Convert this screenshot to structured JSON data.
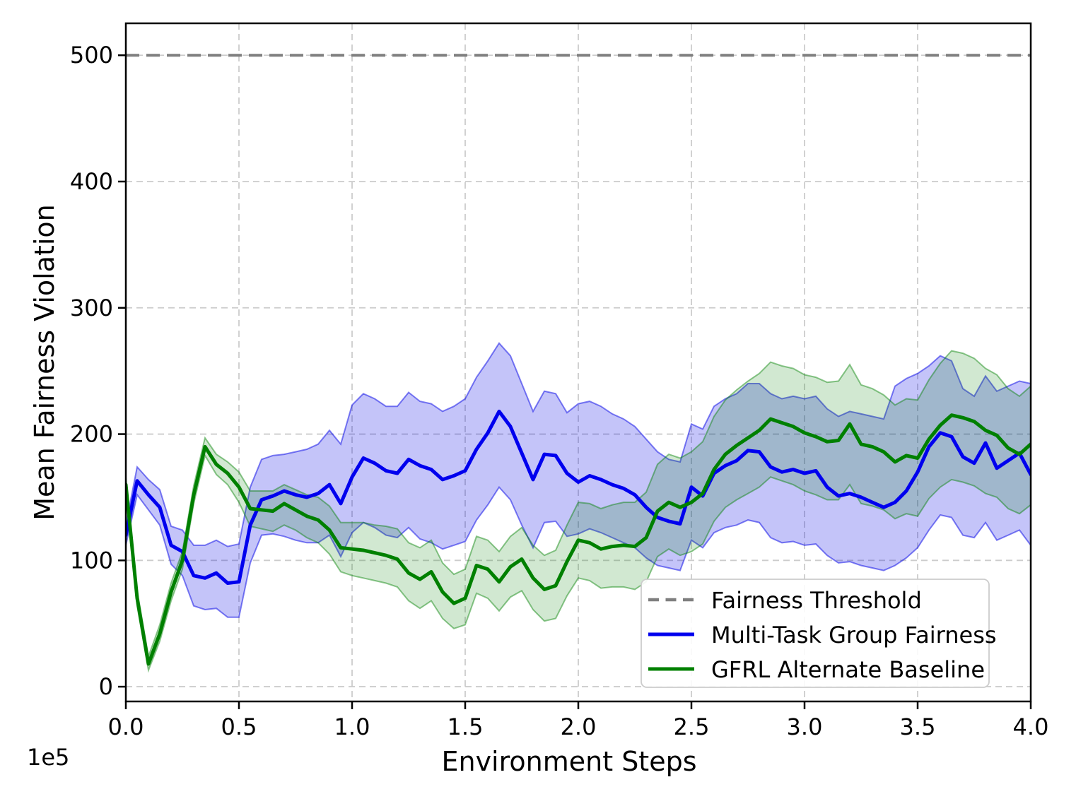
{
  "chart_data": {
    "type": "line",
    "title": "",
    "xlabel": "Environment Steps",
    "ylabel": "Mean Fairness Violation",
    "x_offset_text": "1e5",
    "x_unit_multiplier": 100000,
    "xlim": [
      0,
      4.0
    ],
    "ylim": [
      -11.7,
      525.3
    ],
    "xticks": [
      0,
      0.5,
      1.0,
      1.5,
      2.0,
      2.5,
      3.0,
      3.5,
      4.0
    ],
    "xtick_labels": [
      "0.0",
      "0.5",
      "1.0",
      "1.5",
      "2.0",
      "2.5",
      "3.0",
      "3.5",
      "4.0"
    ],
    "yticks": [
      0,
      100,
      200,
      300,
      400,
      500
    ],
    "ytick_labels": [
      "0",
      "100",
      "200",
      "300",
      "400",
      "500"
    ],
    "grid": true,
    "grid_color": "#cccccc",
    "legend_position": "lower right",
    "threshold": {
      "label": "Fairness Threshold",
      "value": 500,
      "color": "#7f7f7f",
      "style": "dashed"
    },
    "x": [
      0,
      0.05,
      0.1,
      0.15,
      0.2,
      0.25,
      0.3,
      0.35,
      0.4,
      0.45,
      0.5,
      0.55,
      0.6,
      0.65,
      0.7,
      0.75,
      0.8,
      0.85,
      0.9,
      0.95,
      1,
      1.05,
      1.1,
      1.15,
      1.2,
      1.25,
      1.3,
      1.35,
      1.4,
      1.45,
      1.5,
      1.55,
      1.6,
      1.65,
      1.7,
      1.75,
      1.8,
      1.85,
      1.9,
      1.95,
      2,
      2.05,
      2.1,
      2.15,
      2.2,
      2.25,
      2.3,
      2.35,
      2.4,
      2.45,
      2.5,
      2.55,
      2.6,
      2.65,
      2.7,
      2.75,
      2.8,
      2.85,
      2.9,
      2.95,
      3,
      3.05,
      3.1,
      3.15,
      3.2,
      3.25,
      3.3,
      3.35,
      3.4,
      3.45,
      3.5,
      3.55,
      3.6,
      3.65,
      3.7,
      3.75,
      3.8,
      3.85,
      3.9,
      3.95,
      4
    ],
    "series": [
      {
        "name": "Multi-Task Group Fairness",
        "color": "#0000ee",
        "band_fill": "rgba(0,0,230,0.23)",
        "band_edge": "rgba(0,0,230,0.5)",
        "mean": [
          120,
          163,
          152,
          142,
          112,
          107,
          88,
          86,
          90,
          82,
          83,
          128,
          148,
          151,
          155,
          152,
          150,
          153,
          160,
          145,
          166,
          181,
          177,
          171,
          169,
          180,
          175,
          172,
          164,
          167,
          171,
          188,
          201,
          218,
          206,
          185,
          164,
          184,
          183,
          169,
          162,
          167,
          164,
          160,
          157,
          152,
          142,
          134,
          131,
          129,
          158,
          151,
          169,
          175,
          179,
          187,
          186,
          174,
          170,
          172,
          169,
          171,
          158,
          151,
          153,
          150,
          146,
          142,
          146,
          155,
          170,
          190,
          201,
          198,
          182,
          177,
          193,
          173,
          179,
          185,
          168
        ],
        "upper": [
          128,
          174,
          164,
          156,
          127,
          124,
          112,
          112,
          116,
          111,
          113,
          158,
          180,
          183,
          184,
          186,
          188,
          192,
          203,
          192,
          223,
          232,
          228,
          222,
          222,
          233,
          226,
          224,
          218,
          222,
          228,
          245,
          258,
          272,
          262,
          240,
          218,
          234,
          232,
          217,
          224,
          226,
          222,
          216,
          212,
          206,
          196,
          186,
          180,
          178,
          208,
          204,
          222,
          228,
          232,
          240,
          240,
          232,
          228,
          230,
          228,
          230,
          220,
          214,
          218,
          216,
          214,
          212,
          238,
          244,
          248,
          254,
          262,
          258,
          236,
          230,
          246,
          234,
          238,
          242,
          240
        ],
        "lower": [
          112,
          152,
          140,
          128,
          97,
          88,
          64,
          61,
          62,
          55,
          55,
          98,
          120,
          121,
          119,
          116,
          114,
          114,
          120,
          103,
          122,
          130,
          126,
          120,
          118,
          126,
          117,
          114,
          109,
          112,
          115,
          132,
          144,
          158,
          148,
          128,
          110,
          130,
          131,
          119,
          121,
          125,
          122,
          118,
          114,
          110,
          102,
          96,
          94,
          92,
          116,
          110,
          122,
          126,
          128,
          132,
          130,
          118,
          114,
          115,
          112,
          113,
          104,
          98,
          99,
          96,
          94,
          92,
          96,
          102,
          110,
          124,
          136,
          134,
          120,
          118,
          130,
          116,
          120,
          124,
          112
        ]
      },
      {
        "name": "GFRL Alternate Baseline",
        "color": "#008000",
        "band_fill": "rgba(0,128,0,0.18)",
        "band_edge": "rgba(0,128,0,0.45)",
        "mean": [
          160,
          70,
          18,
          42,
          75,
          100,
          152,
          190,
          176,
          169,
          158,
          141,
          140,
          139,
          145,
          140,
          135,
          132,
          124,
          110,
          109,
          108,
          106,
          104,
          101,
          90,
          85,
          91,
          75,
          66,
          70,
          96,
          93,
          83,
          95,
          101,
          86,
          77,
          80,
          99,
          116,
          114,
          109,
          111,
          112,
          111,
          118,
          139,
          146,
          142,
          146,
          153,
          172,
          184,
          191,
          197,
          203,
          212,
          209,
          206,
          201,
          198,
          194,
          195,
          208,
          192,
          190,
          186,
          178,
          183,
          181,
          196,
          207,
          215,
          213,
          210,
          203,
          199,
          189,
          184,
          192
        ],
        "upper": [
          166,
          76,
          24,
          49,
          82,
          107,
          159,
          197,
          184,
          178,
          170,
          155,
          155,
          155,
          160,
          156,
          152,
          150,
          143,
          130,
          130,
          130,
          128,
          127,
          125,
          114,
          110,
          116,
          98,
          89,
          93,
          119,
          116,
          107,
          119,
          126,
          112,
          104,
          108,
          128,
          146,
          145,
          141,
          144,
          146,
          146,
          154,
          176,
          184,
          181,
          186,
          194,
          214,
          227,
          235,
          242,
          248,
          257,
          254,
          252,
          247,
          245,
          241,
          242,
          255,
          239,
          236,
          231,
          223,
          228,
          227,
          243,
          256,
          266,
          264,
          260,
          252,
          247,
          236,
          230,
          238
        ],
        "lower": [
          154,
          64,
          13,
          36,
          68,
          93,
          145,
          183,
          168,
          160,
          146,
          127,
          125,
          123,
          128,
          124,
          118,
          114,
          105,
          91,
          88,
          86,
          84,
          82,
          79,
          68,
          62,
          68,
          54,
          46,
          49,
          74,
          70,
          60,
          71,
          76,
          61,
          52,
          54,
          72,
          86,
          84,
          78,
          79,
          79,
          77,
          83,
          103,
          109,
          104,
          107,
          113,
          131,
          142,
          148,
          153,
          158,
          166,
          163,
          160,
          155,
          152,
          148,
          148,
          160,
          145,
          143,
          140,
          133,
          137,
          135,
          149,
          158,
          164,
          162,
          159,
          153,
          150,
          141,
          137,
          144
        ]
      }
    ]
  }
}
